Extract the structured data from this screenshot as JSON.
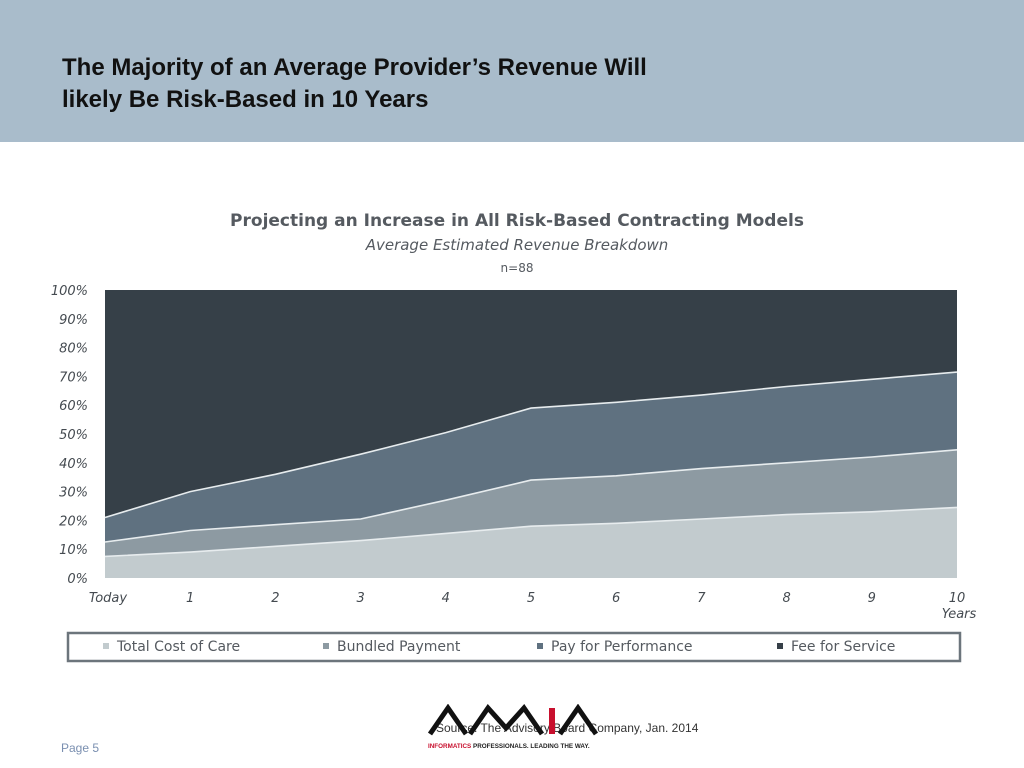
{
  "slide": {
    "title_line1": "The Majority of an Average Provider’s Revenue Will",
    "title_line2": "likely Be Risk-Based in 10 Years",
    "header_color": "#a9bccb",
    "source": "Source: The Advisory Board Company, Jan. 2014",
    "page": "Page 5"
  },
  "logo": {
    "text": "AMIA",
    "tagline_accent": "INFORMATICS",
    "tagline_rest": " PROFESSIONALS. LEADING THE WAY.",
    "accent_color": "#c8102e"
  },
  "chart_data": {
    "type": "area",
    "stacked": true,
    "title": "Projecting an Increase in All Risk-Based Contracting Models",
    "subtitle": "Average Estimated Revenue Breakdown",
    "n_label": "n=88",
    "x": [
      0,
      1,
      2,
      3,
      4,
      5,
      6,
      7,
      8,
      9,
      10
    ],
    "x_labels": [
      "Today",
      "1",
      "2",
      "3",
      "4",
      "5",
      "6",
      "7",
      "8",
      "9",
      "10"
    ],
    "x_unit_label": "Years",
    "ylim": [
      0,
      100
    ],
    "y_ticks": [
      0,
      10,
      20,
      30,
      40,
      50,
      60,
      70,
      80,
      90,
      100
    ],
    "y_tick_labels": [
      "0%",
      "10%",
      "20%",
      "30%",
      "40%",
      "50%",
      "60%",
      "70%",
      "80%",
      "90%",
      "100%"
    ],
    "series": [
      {
        "name": "Total Cost of Care",
        "color": "#c2cbce",
        "values": [
          7.5,
          9,
          11,
          13,
          15.5,
          18,
          19,
          20.5,
          22,
          23,
          24.5
        ]
      },
      {
        "name": "Bundled Payment",
        "color": "#8d9aa2",
        "values": [
          5,
          7.5,
          7.5,
          7.5,
          11.5,
          16,
          16.5,
          17.5,
          18,
          19,
          20
        ]
      },
      {
        "name": "Pay for Performance",
        "color": "#5f7180",
        "values": [
          8.5,
          13.5,
          17.5,
          22.5,
          23.5,
          25,
          25.5,
          25.5,
          26.5,
          27,
          27
        ]
      },
      {
        "name": "Fee for Service",
        "color": "#364048",
        "values": [
          79,
          70,
          64,
          57,
          49.5,
          41,
          39,
          36.5,
          33.5,
          31,
          28.5
        ]
      }
    ],
    "legend_position": "bottom",
    "grid": false
  }
}
